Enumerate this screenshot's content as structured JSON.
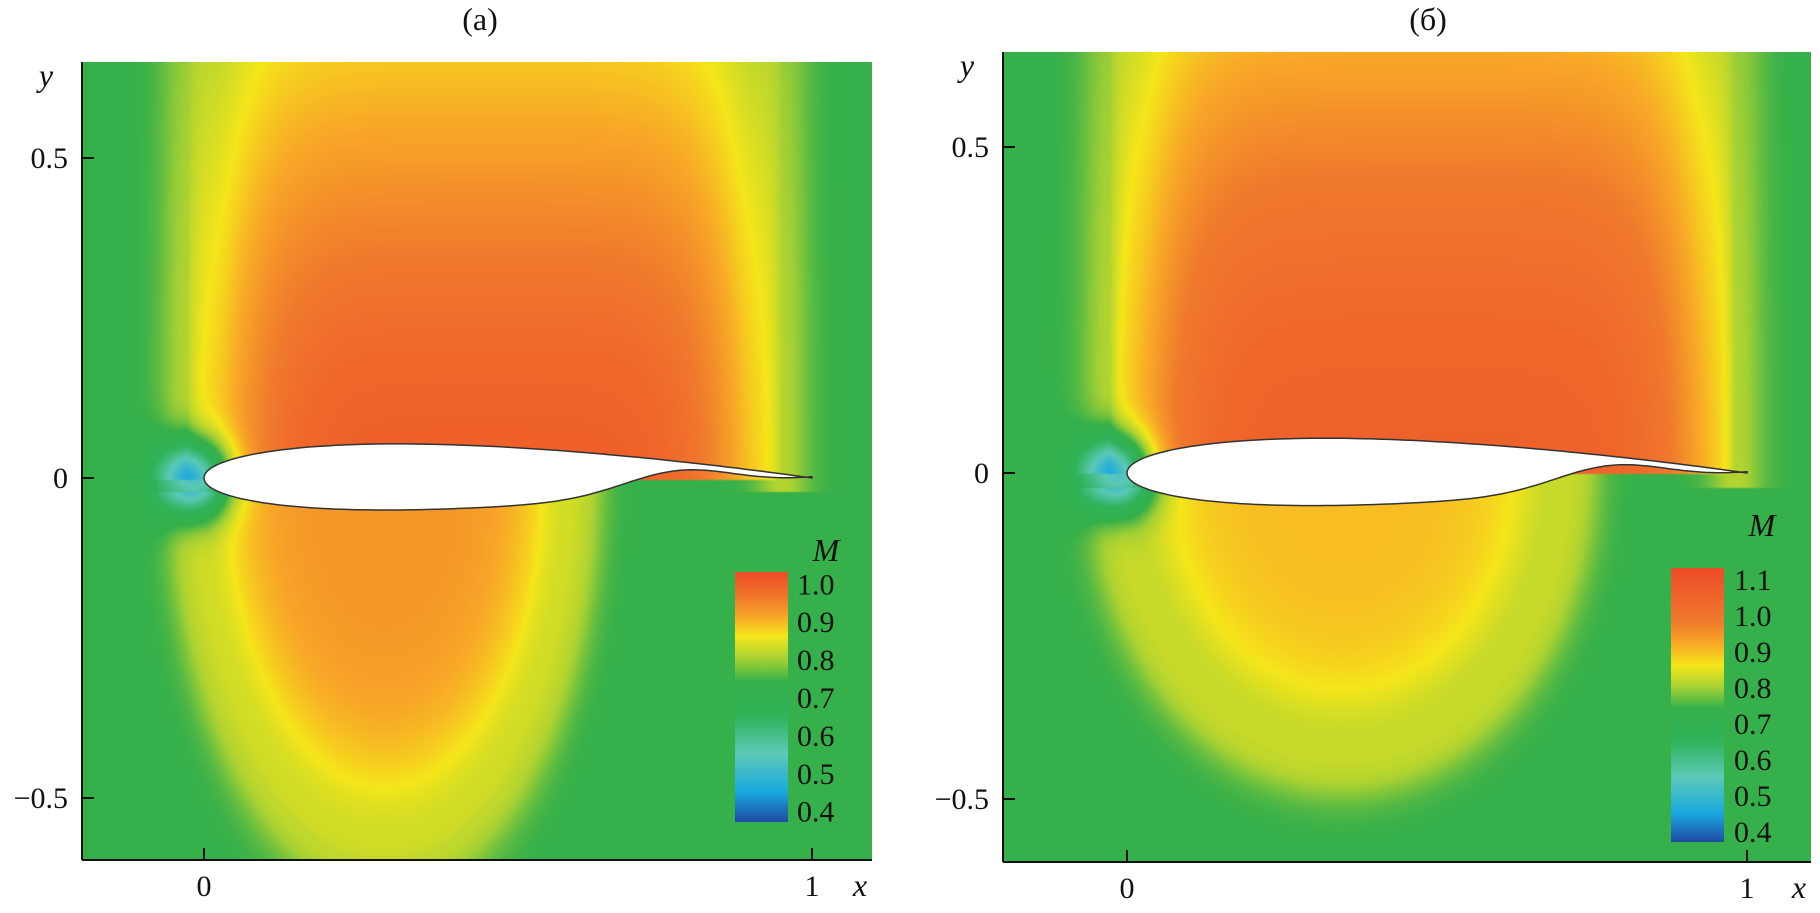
{
  "chart_data": [
    {
      "type": "heatmap",
      "panel_label": "(a)",
      "xlabel": "x",
      "ylabel": "y",
      "xlim": [
        -0.2,
        1.1
      ],
      "ylim": [
        -0.6,
        0.65
      ],
      "x_ticks": [
        {
          "value": 0,
          "label": "0"
        },
        {
          "value": 1,
          "label": "1"
        }
      ],
      "y_ticks": [
        {
          "value": 0.5,
          "label": "0.5"
        },
        {
          "value": 0,
          "label": "0"
        },
        {
          "value": -0.5,
          "label": "−0.5"
        }
      ],
      "colorbar": {
        "title": "M",
        "range": [
          0.37,
          1.03
        ],
        "ticks": [
          {
            "value": 1.0,
            "label": "1.0"
          },
          {
            "value": 0.9,
            "label": "0.9"
          },
          {
            "value": 0.8,
            "label": "0.8"
          },
          {
            "value": 0.7,
            "label": "0.7"
          },
          {
            "value": 0.6,
            "label": "0.6"
          },
          {
            "value": 0.5,
            "label": "0.5"
          },
          {
            "value": 0.4,
            "label": "0.4"
          }
        ]
      },
      "field": {
        "freestream": 0.74,
        "upper_peak": 1.0,
        "lower_peak": 0.93,
        "upper_extent_x": [
          0.0,
          0.92
        ],
        "lower_extent_x": [
          0.0,
          0.55
        ],
        "lower_extent_y": -0.6,
        "stagnation": {
          "x": -0.02,
          "y": 0.0,
          "value": 0.38
        }
      },
      "airfoil": {
        "leading_edge_x": 0.0,
        "trailing_edge_x": 1.0,
        "upper_max_y": 0.05,
        "lower_min_y": -0.05
      },
      "colormap": [
        {
          "value": 0.37,
          "color": "#1f4aa3"
        },
        {
          "value": 0.45,
          "color": "#1aa8e0"
        },
        {
          "value": 0.55,
          "color": "#5cc9b8"
        },
        {
          "value": 0.65,
          "color": "#2fb35a"
        },
        {
          "value": 0.74,
          "color": "#35b04a"
        },
        {
          "value": 0.8,
          "color": "#a6d134"
        },
        {
          "value": 0.86,
          "color": "#f5e61a"
        },
        {
          "value": 0.91,
          "color": "#f8a827"
        },
        {
          "value": 0.96,
          "color": "#f07a2c"
        },
        {
          "value": 1.03,
          "color": "#ee4b28"
        }
      ]
    },
    {
      "type": "heatmap",
      "panel_label": "(б)",
      "xlabel": "x",
      "ylabel": "y",
      "xlim": [
        -0.2,
        1.1
      ],
      "ylim": [
        -0.6,
        0.65
      ],
      "x_ticks": [
        {
          "value": 0,
          "label": "0"
        },
        {
          "value": 1,
          "label": "1"
        }
      ],
      "y_ticks": [
        {
          "value": 0.5,
          "label": "0.5"
        },
        {
          "value": 0,
          "label": "0"
        },
        {
          "value": -0.5,
          "label": "−0.5"
        }
      ],
      "colorbar": {
        "title": "M",
        "range": [
          0.37,
          1.13
        ],
        "ticks": [
          {
            "value": 1.1,
            "label": "1.1"
          },
          {
            "value": 1.0,
            "label": "1.0"
          },
          {
            "value": 0.9,
            "label": "0.9"
          },
          {
            "value": 0.8,
            "label": "0.8"
          },
          {
            "value": 0.7,
            "label": "0.7"
          },
          {
            "value": 0.6,
            "label": "0.6"
          },
          {
            "value": 0.5,
            "label": "0.5"
          },
          {
            "value": 0.4,
            "label": "0.4"
          }
        ]
      },
      "field": {
        "freestream": 0.74,
        "upper_peak": 1.06,
        "lower_peak": 0.9,
        "upper_extent_x": [
          0.0,
          0.95
        ],
        "lower_extent_x": [
          0.0,
          0.65
        ],
        "lower_extent_y": -0.45,
        "stagnation": {
          "x": -0.02,
          "y": 0.0,
          "value": 0.38
        }
      },
      "airfoil": {
        "leading_edge_x": 0.0,
        "trailing_edge_x": 1.0,
        "upper_max_y": 0.05,
        "lower_min_y": -0.05
      },
      "colormap": [
        {
          "value": 0.37,
          "color": "#1f4aa3"
        },
        {
          "value": 0.45,
          "color": "#1aa8e0"
        },
        {
          "value": 0.55,
          "color": "#5cc9b8"
        },
        {
          "value": 0.65,
          "color": "#2fb35a"
        },
        {
          "value": 0.74,
          "color": "#35b04a"
        },
        {
          "value": 0.8,
          "color": "#a6d134"
        },
        {
          "value": 0.86,
          "color": "#f5e61a"
        },
        {
          "value": 0.92,
          "color": "#f8a827"
        },
        {
          "value": 0.98,
          "color": "#f07a2c"
        },
        {
          "value": 1.13,
          "color": "#ee4b28"
        }
      ]
    }
  ]
}
